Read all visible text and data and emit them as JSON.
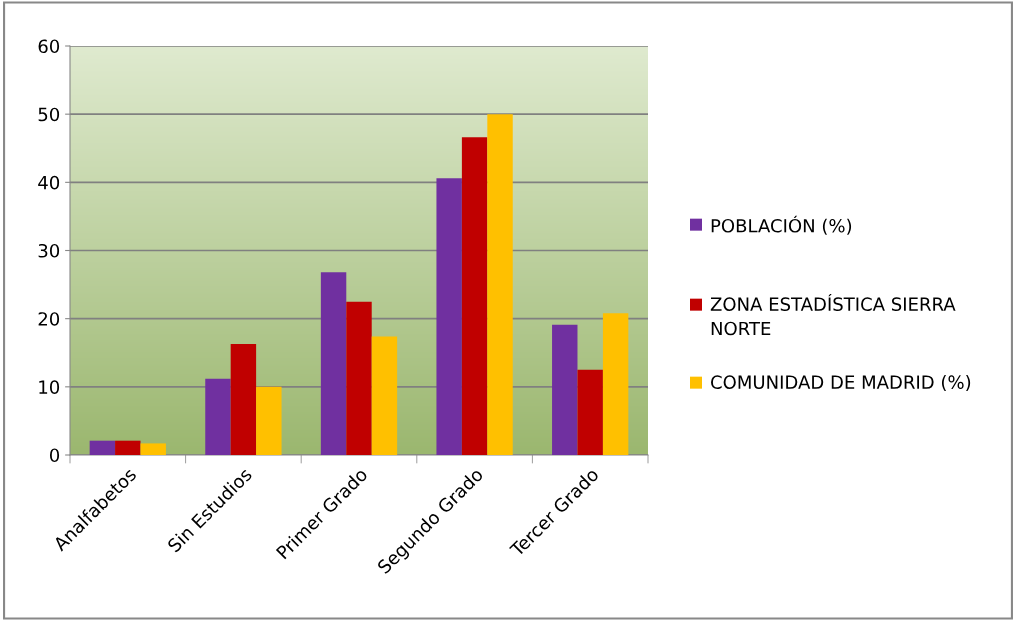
{
  "chart_data": {
    "type": "bar",
    "categories": [
      "Analfabetos",
      "Sin Estudios",
      "Primer Grado",
      "Segundo Grado",
      "Tercer Grado"
    ],
    "series": [
      {
        "name": "POBLACIÓN (%)",
        "color": "#7030a0",
        "values": [
          2.1,
          11.2,
          26.8,
          40.6,
          19.1
        ]
      },
      {
        "name": "ZONA ESTADÍSTICA SIERRA NORTE",
        "color": "#c00000",
        "values": [
          2.1,
          16.3,
          22.5,
          46.6,
          12.5
        ]
      },
      {
        "name": "COMUNIDAD DE MADRID (%)",
        "color": "#ffc000",
        "values": [
          1.7,
          10.0,
          17.4,
          50.0,
          20.8
        ]
      }
    ],
    "ylim": [
      0,
      60
    ],
    "yticks": [
      0,
      10,
      20,
      30,
      40,
      50,
      60
    ],
    "grid": "y",
    "legend": "right"
  }
}
